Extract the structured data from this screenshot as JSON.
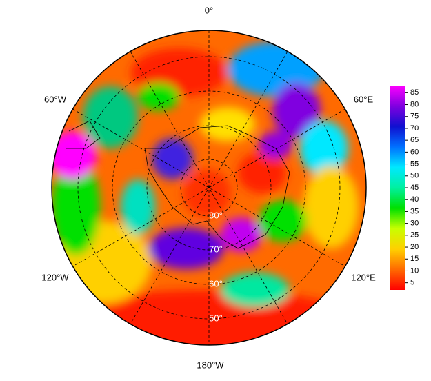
{
  "map": {
    "longitude_labels": [
      "0°",
      "60°E",
      "120°E",
      "180°W",
      "120°W",
      "60°W"
    ],
    "latitude_labels": [
      "80°",
      "70°",
      "60°",
      "50°"
    ]
  },
  "colorbar": {
    "ticks": [
      5,
      10,
      15,
      20,
      25,
      30,
      35,
      40,
      45,
      50,
      55,
      60,
      65,
      70,
      75,
      80,
      85
    ],
    "lim": [
      2,
      88
    ],
    "colors": [
      "#ff0000",
      "#ff6a00",
      "#ffd000",
      "#c8ff00",
      "#00e000",
      "#00f0a0",
      "#00e8ff",
      "#0070ff",
      "#1010d0",
      "#8000e0",
      "#ff00ff"
    ]
  }
}
